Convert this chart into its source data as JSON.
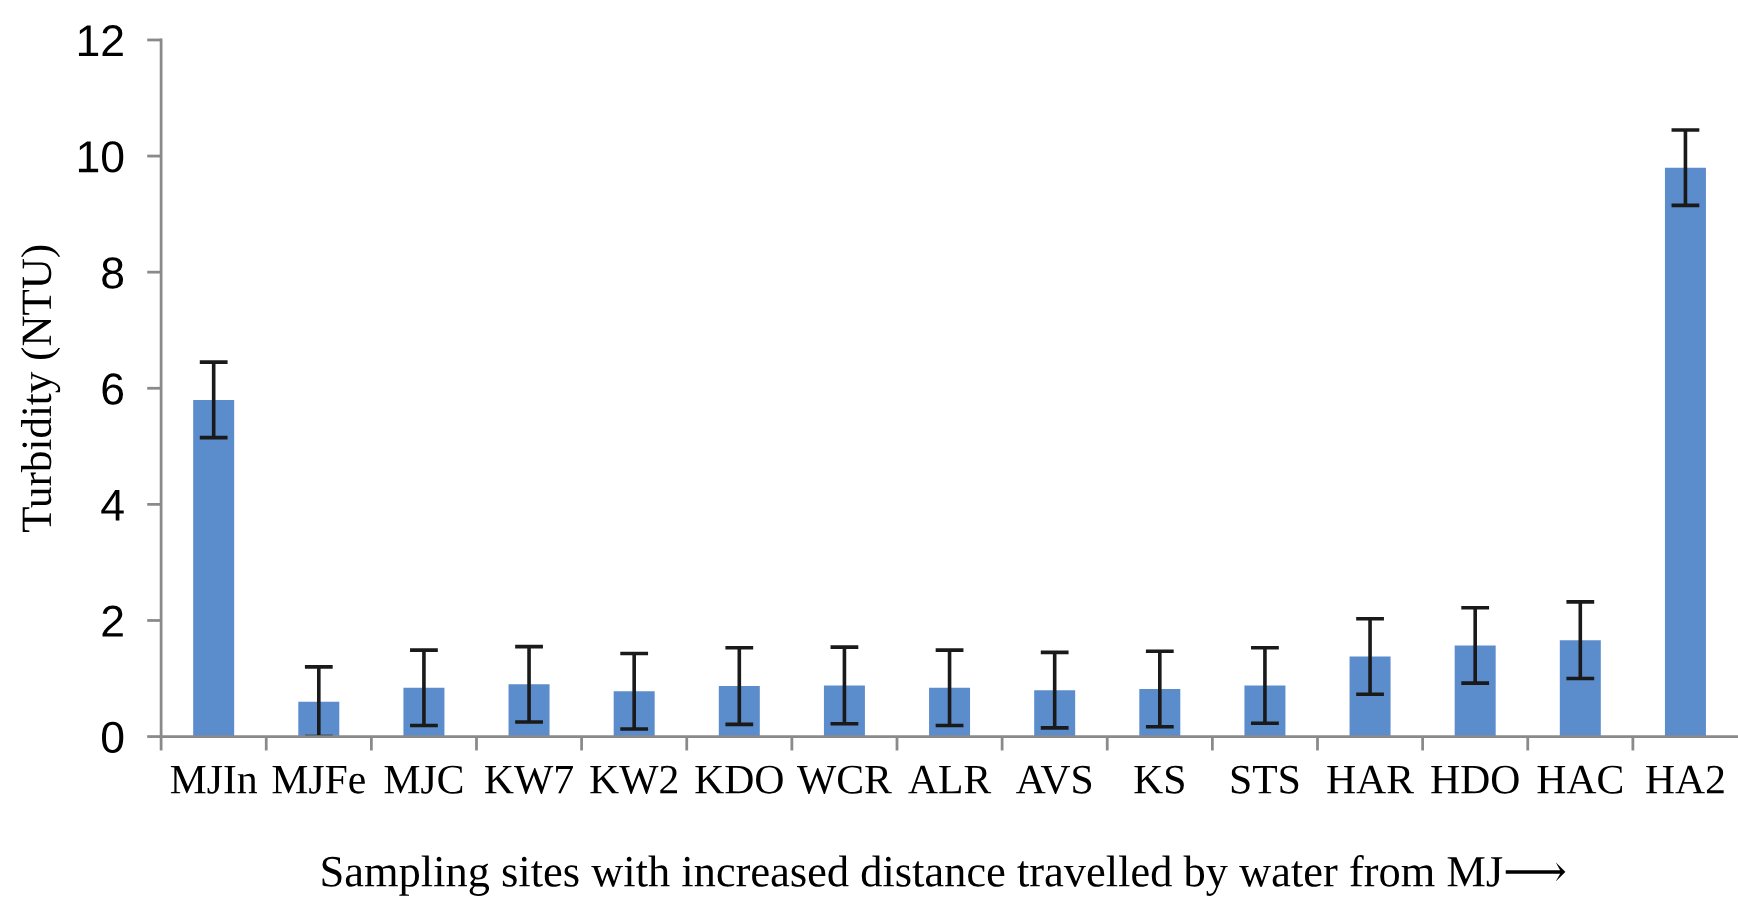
{
  "chart_data": {
    "type": "bar",
    "xlabel": "Sampling sites with increased distance travelled by water from MJ⟶",
    "ylabel": "Turbidity (NTU)",
    "categories": [
      "MJIn",
      "MJFe",
      "MJC",
      "KW7",
      "KW2",
      "KDO",
      "WCR",
      "ALR",
      "AVS",
      "KS",
      "STS",
      "HAR",
      "HDO",
      "HAC",
      "HA2"
    ],
    "values": [
      5.8,
      0.6,
      0.84,
      0.9,
      0.78,
      0.87,
      0.88,
      0.84,
      0.8,
      0.82,
      0.88,
      1.38,
      1.57,
      1.66,
      9.8
    ],
    "errors": [
      0.65,
      0.6,
      0.65,
      0.65,
      0.65,
      0.66,
      0.66,
      0.65,
      0.65,
      0.65,
      0.65,
      0.65,
      0.65,
      0.66,
      0.65
    ],
    "color": "#5b8dcd",
    "ylim": [
      0,
      12
    ],
    "yticks": [
      0,
      2,
      4,
      6,
      8,
      10,
      12
    ]
  }
}
